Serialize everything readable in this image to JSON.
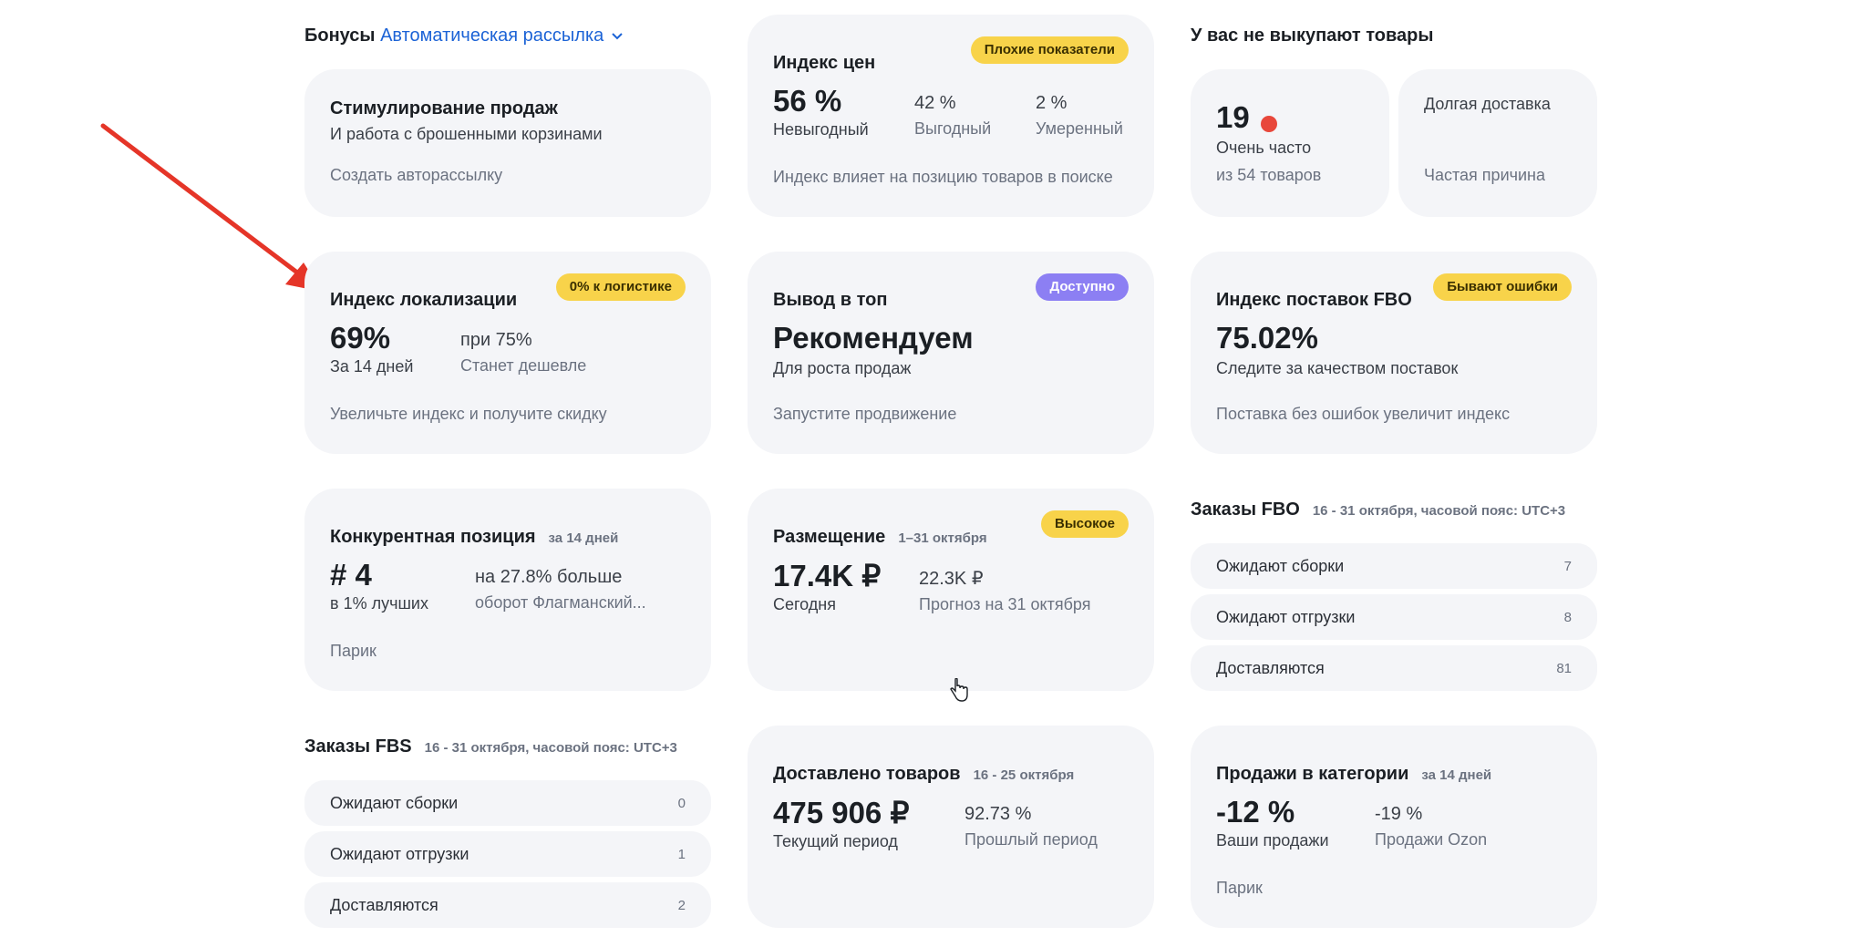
{
  "bonuses": {
    "label": "Бонусы",
    "link": "Автоматическая рассылка"
  },
  "stimulus": {
    "title": "Стимулирование продаж",
    "subtitle": "И работа с брошенными корзинами",
    "footer": "Создать авторассылку"
  },
  "price_index": {
    "title": "Индекс цен",
    "badge": "Плохие показатели",
    "main_value": "56 %",
    "main_label": "Невыгодный",
    "v2": "42 %",
    "l2": "Выгодный",
    "v3": "2 %",
    "l3": "Умеренный",
    "footer": "Индекс влияет на позицию товаров в поиске"
  },
  "no_buyout": {
    "section_title": "У вас не выкупают товары",
    "count": "19",
    "count_label": "Очень часто",
    "count_footer": "из 54 товаров",
    "reason_title": "Долгая доставка",
    "reason_footer": "Частая причина"
  },
  "localization": {
    "title": "Индекс локализации",
    "badge": "0% к логистике",
    "main_value": "69%",
    "main_label": "За 14 дней",
    "v2": "при 75%",
    "l2": "Станет дешевле",
    "footer": "Увеличьте индекс и получите скидку"
  },
  "top": {
    "title": "Вывод в топ",
    "badge": "Доступно",
    "main": "Рекомендуем",
    "sub": "Для роста продаж",
    "footer": "Запустите продвижение"
  },
  "fbo_index": {
    "title": "Индекс поставок FBO",
    "badge": "Бывают ошибки",
    "main": "75.02%",
    "sub": "Следите за качеством поставок",
    "footer": "Поставка без ошибок увеличит индекс"
  },
  "competitive": {
    "title": "Конкурентная позиция",
    "note": "за 14 дней",
    "main_value": "# 4",
    "main_label": "в 1% лучших",
    "v2": "на 27.8% больше",
    "l2": "оборот Флагманский...",
    "footer": "Парик"
  },
  "placement": {
    "title": "Размещение",
    "note": "1–31 октября",
    "badge": "Высокое",
    "main_value": "17.4K ₽",
    "main_label": "Сегодня",
    "v2": "22.3K ₽",
    "l2": "Прогноз на 31 октября"
  },
  "fbo_orders": {
    "title": "Заказы FBO",
    "note": "16 - 31 октября, часовой пояс: UTC+3",
    "rows": [
      {
        "label": "Ожидают сборки",
        "count": "7"
      },
      {
        "label": "Ожидают отгрузки",
        "count": "8"
      },
      {
        "label": "Доставляются",
        "count": "81"
      }
    ]
  },
  "fbs_orders": {
    "title": "Заказы FBS",
    "note": "16 - 31 октября, часовой пояс: UTC+3",
    "rows": [
      {
        "label": "Ожидают сборки",
        "count": "0"
      },
      {
        "label": "Ожидают отгрузки",
        "count": "1"
      },
      {
        "label": "Доставляются",
        "count": "2"
      }
    ]
  },
  "delivered": {
    "title": "Доставлено товаров",
    "note": "16 - 25 октября",
    "main_value": "475 906 ₽",
    "main_label": "Текущий период",
    "v2": "92.73 %",
    "l2": "Прошлый период"
  },
  "category_sales": {
    "title": "Продажи в категории",
    "note": "за 14 дней",
    "main_value": "-12 %",
    "main_label": "Ваши продажи",
    "v2": "-19 %",
    "l2": "Продажи Ozon",
    "footer": "Парик"
  },
  "colors": {
    "accent_link": "#1c63d6",
    "badge_yellow": "#f8d34a",
    "badge_purple": "#8c7ff3",
    "dot_red": "#e8473b",
    "arrow": "#e53528"
  }
}
